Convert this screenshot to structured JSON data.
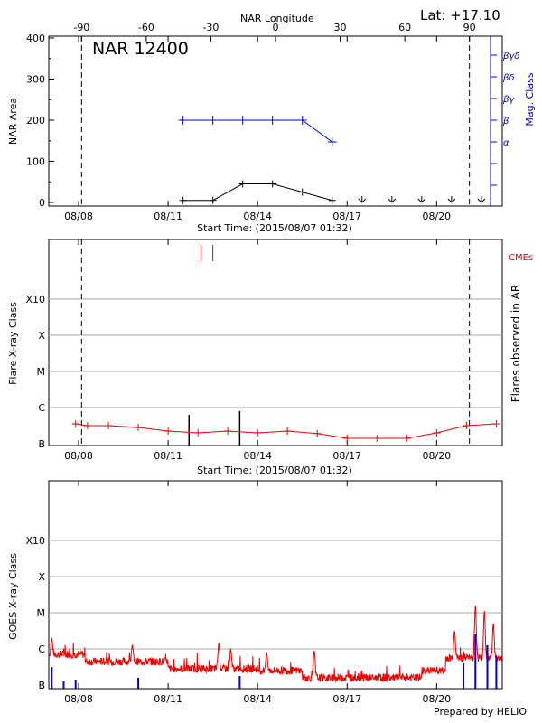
{
  "header": {
    "lat_label": "Lat: +17.10",
    "footer": "Prepared by HELIO"
  },
  "colors": {
    "blue": "#0000cc",
    "red": "#ee0000",
    "black": "#000000",
    "grid": "#aaaaaa"
  },
  "chart_data": [
    {
      "type": "line",
      "title": "NAR 12400",
      "xlabel": "Start Time: (2015/08/07 01:32)",
      "ylabel": "NAR Area",
      "y2label": "Mag. Class",
      "top_axis_label": "NAR Longitude",
      "top_ticks": [
        "-90",
        "-60",
        "-30",
        "0",
        "30",
        "60",
        "90"
      ],
      "x_ticks": [
        "08/08",
        "08/11",
        "08/14",
        "08/17",
        "08/20"
      ],
      "y_ticks": [
        "0",
        "100",
        "200",
        "300",
        "400"
      ],
      "ylim": [
        0,
        400
      ],
      "mag_classes": [
        "α",
        "β",
        "βγ",
        "βδ",
        "βγδ"
      ],
      "event_lines_day": [
        8.1,
        21.1
      ],
      "series": [
        {
          "name": "NAR Area",
          "x": [
            11.5,
            12.5,
            13.5,
            14.5,
            15.5,
            16.5,
            17.5,
            18.5,
            19.5,
            20.5,
            21.5
          ],
          "values": [
            5,
            5,
            45,
            45,
            25,
            5,
            0,
            0,
            0,
            0,
            0
          ]
        },
        {
          "name": "Mag. Class",
          "x": [
            11.5,
            12.5,
            13.5,
            14.5,
            15.5,
            16.5
          ],
          "values": [
            1,
            1,
            1,
            1,
            1,
            0
          ]
        }
      ]
    },
    {
      "type": "line",
      "xlabel": "Start Time: (2015/08/07 01:32)",
      "ylabel": "Flare X-ray Class",
      "y2label": "Flares observed in AR",
      "x_ticks": [
        "08/08",
        "08/11",
        "08/14",
        "08/17",
        "08/20"
      ],
      "y_ticks": [
        "B",
        "C",
        "M",
        "X",
        "X10"
      ],
      "cme_label": "CMEs",
      "cme_days": [
        12.1,
        12.5
      ],
      "flare_days": [
        11.7,
        13.4
      ],
      "event_lines_day": [
        8.1,
        21.1
      ],
      "series": [
        {
          "name": "background",
          "x": [
            7.9,
            8.3,
            9.0,
            10.0,
            11.0,
            12.0,
            13.0,
            14.0,
            15.0,
            16.0,
            17.0,
            18.0,
            19.0,
            20.0,
            21.0,
            22.0
          ],
          "values": [
            -5.45,
            -5.5,
            -5.5,
            -5.55,
            -5.65,
            -5.7,
            -5.65,
            -5.7,
            -5.65,
            -5.72,
            -5.85,
            -5.85,
            -5.85,
            -5.7,
            -5.5,
            -5.45
          ]
        }
      ]
    },
    {
      "type": "line",
      "ylabel": "GOES X-ray Class",
      "x_ticks": [
        "08/08",
        "08/11",
        "08/14",
        "08/17",
        "08/20"
      ],
      "y_ticks": [
        "B",
        "C",
        "M",
        "X",
        "X10"
      ]
    }
  ]
}
